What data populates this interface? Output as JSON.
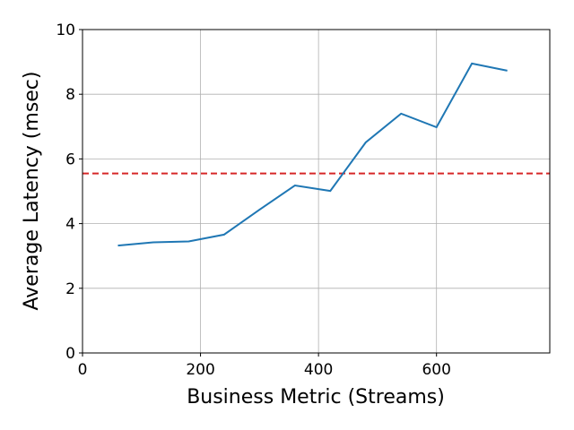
{
  "chart_data": {
    "type": "line",
    "x_label": "Business Metric (Streams)",
    "y_label": "Average Latency (msec)",
    "x": [
      60,
      120,
      180,
      240,
      300,
      360,
      420,
      480,
      540,
      600,
      660,
      720
    ],
    "series": [
      {
        "color": "#1f77b4",
        "values": [
          3.32,
          3.42,
          3.45,
          3.66,
          4.43,
          5.18,
          5.01,
          6.51,
          7.4,
          6.98,
          8.95,
          8.73
        ]
      }
    ],
    "reference_line": {
      "value": 5.55,
      "color": "#d62728"
    },
    "xlim": [
      0,
      792
    ],
    "xticks": [
      0,
      200,
      400,
      600
    ],
    "ylim": [
      0,
      10
    ],
    "yticks": [
      0,
      2,
      4,
      6,
      8,
      10
    ],
    "grid": true
  }
}
